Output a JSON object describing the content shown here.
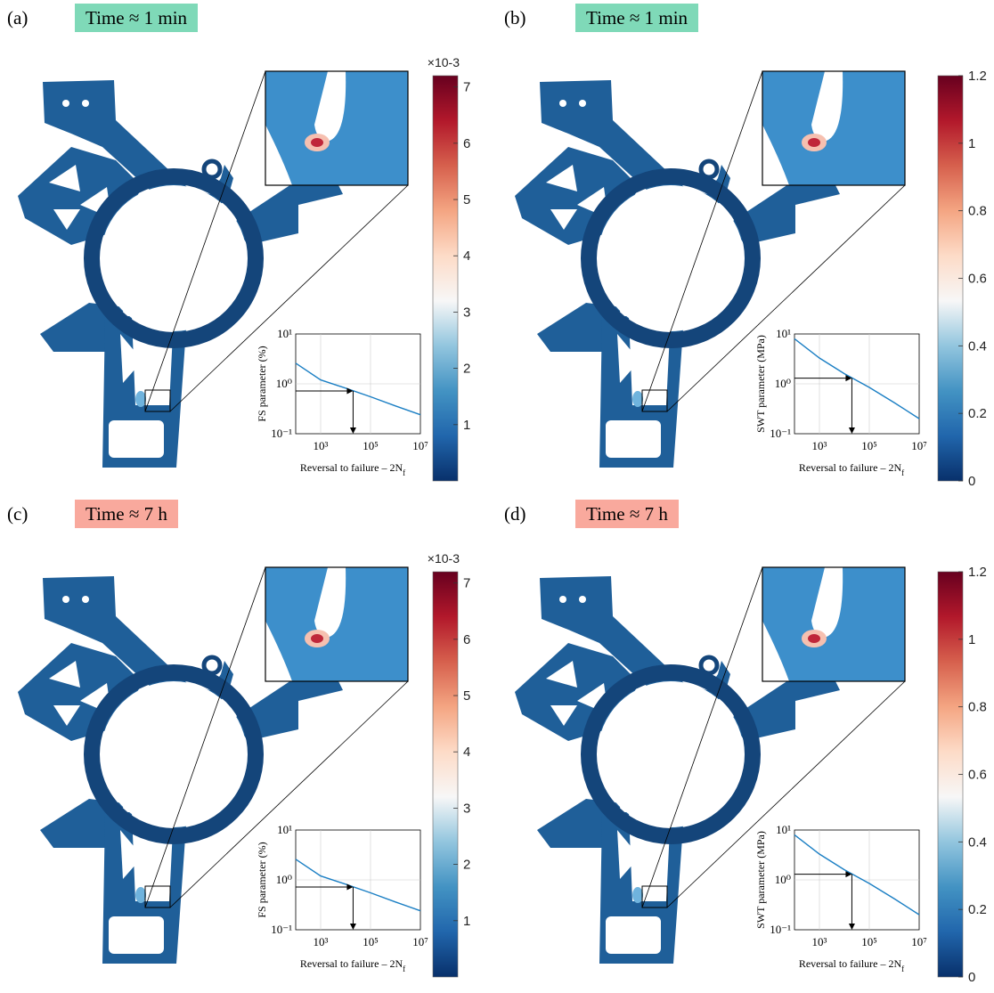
{
  "panels": [
    {
      "label": "(a)",
      "time": "Time ≈ 1 min",
      "time_class": "short",
      "param": "FS"
    },
    {
      "label": "(b)",
      "time": "Time ≈ 1 min",
      "time_class": "short",
      "param": "SWT"
    },
    {
      "label": "(c)",
      "time": "Time ≈ 7 h",
      "time_class": "long",
      "param": "FS"
    },
    {
      "label": "(d)",
      "time": "Time ≈ 7 h",
      "time_class": "long",
      "param": "SWT"
    }
  ],
  "colorbars": {
    "FS": {
      "multiplier": "×10-3",
      "ticks": [
        "1",
        "2",
        "3",
        "4",
        "5",
        "6",
        "7"
      ],
      "tick_values": [
        1,
        2,
        3,
        4,
        5,
        6,
        7
      ],
      "min": 0,
      "max": 7.2
    },
    "SWT": {
      "multiplier": "",
      "ticks": [
        "0",
        "0.2",
        "0.4",
        "0.6",
        "0.8",
        "1",
        "1.2"
      ],
      "tick_values": [
        0,
        0.2,
        0.4,
        0.6,
        0.8,
        1,
        1.2
      ],
      "min": 0,
      "max": 1.2
    }
  },
  "colormap": [
    "#08306b",
    "#2166ac",
    "#4393c3",
    "#92c5de",
    "#f7f7f7",
    "#fddbc7",
    "#f4a582",
    "#d6604d",
    "#b2182b",
    "#67001f"
  ],
  "chart_data": [
    {
      "type": "line",
      "panel": "(a)",
      "ylabel": "FS parameter (%)",
      "xlabel": "Reversal to failure – 2N",
      "xlabel_sub": "f",
      "xscale": "log",
      "yscale": "log",
      "xlim": [
        100,
        10000000
      ],
      "ylim": [
        0.1,
        10
      ],
      "xticks": [
        "10³",
        "10⁵",
        "10⁷"
      ],
      "yticks": [
        "10¹",
        "10⁰",
        "10⁻¹"
      ],
      "series": [
        {
          "x": [
            100,
            1000,
            10000,
            100000,
            1000000,
            10000000
          ],
          "y": [
            2.6,
            1.2,
            0.82,
            0.55,
            0.36,
            0.24
          ]
        }
      ],
      "annotation": {
        "x": 20000,
        "y": 0.72
      }
    },
    {
      "type": "line",
      "panel": "(b)",
      "ylabel": "SWT parameter (MPa)",
      "xlabel": "Reversal to failure – 2N",
      "xlabel_sub": "f",
      "xscale": "log",
      "yscale": "log",
      "xlim": [
        100,
        10000000
      ],
      "ylim": [
        0.1,
        10
      ],
      "xticks": [
        "10³",
        "10⁵",
        "10⁷"
      ],
      "yticks": [
        "10¹",
        "10⁰",
        "10⁻¹"
      ],
      "series": [
        {
          "x": [
            100,
            1000,
            10000,
            100000,
            1000000,
            10000000
          ],
          "y": [
            8,
            3.3,
            1.6,
            0.85,
            0.42,
            0.2
          ]
        }
      ],
      "annotation": {
        "x": 20000,
        "y": 1.3
      }
    },
    {
      "type": "line",
      "panel": "(c)",
      "ylabel": "FS parameter (%)",
      "xlabel": "Reversal to failure – 2N",
      "xlabel_sub": "f",
      "xscale": "log",
      "yscale": "log",
      "xlim": [
        100,
        10000000
      ],
      "ylim": [
        0.1,
        10
      ],
      "xticks": [
        "10³",
        "10⁵",
        "10⁷"
      ],
      "yticks": [
        "10¹",
        "10⁰",
        "10⁻¹"
      ],
      "series": [
        {
          "x": [
            100,
            1000,
            10000,
            100000,
            1000000,
            10000000
          ],
          "y": [
            2.6,
            1.2,
            0.82,
            0.55,
            0.36,
            0.24
          ]
        }
      ],
      "annotation": {
        "x": 20000,
        "y": 0.72
      }
    },
    {
      "type": "line",
      "panel": "(d)",
      "ylabel": "SWT parameter (MPa)",
      "xlabel": "Reversal to failure – 2N",
      "xlabel_sub": "f",
      "xscale": "log",
      "yscale": "log",
      "xlim": [
        100,
        10000000
      ],
      "ylim": [
        0.1,
        10
      ],
      "xticks": [
        "10³",
        "10⁵",
        "10⁷"
      ],
      "yticks": [
        "10¹",
        "10⁰",
        "10⁻¹"
      ],
      "series": [
        {
          "x": [
            100,
            1000,
            10000,
            100000,
            1000000,
            10000000
          ],
          "y": [
            8,
            3.3,
            1.6,
            0.85,
            0.42,
            0.2
          ]
        }
      ],
      "annotation": {
        "x": 20000,
        "y": 1.3
      }
    }
  ]
}
